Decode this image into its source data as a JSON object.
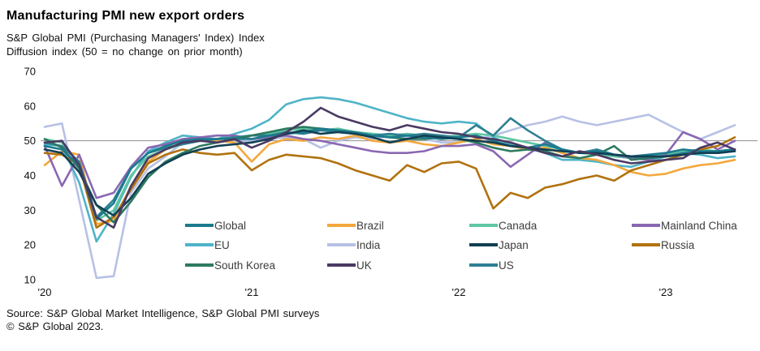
{
  "page": {
    "title": "Manufacturing PMI new export orders",
    "subtitle_line1": "S&P Global PMI (Purchasing Managers' Index) Index",
    "subtitle_line2": "Diffusion index (50 = no change on prior month)",
    "source_line1": "Source: S&P Global Market Intelligence, S&P Global PMI surveys",
    "source_line2": "© S&P Global 2023."
  },
  "chart_data": {
    "type": "line",
    "title": "Manufacturing PMI new export orders",
    "subtitle": "S&P Global PMI (Purchasing Managers' Index) Index",
    "note": "Diffusion index (50 = no change on prior month)",
    "ylim": [
      10,
      70
    ],
    "yticks": [
      70,
      60,
      50,
      40,
      30,
      20,
      10
    ],
    "xticks": [
      "'20",
      "'21",
      "'22",
      "'23"
    ],
    "reference_line": 50,
    "grid": "single horizontal reference line at 50",
    "legend_position": "inside plot, lower area, 3 rows x 4 columns",
    "reference_line_color": "#8f8f8f",
    "x_months": [
      "2020-01",
      "2020-02",
      "2020-03",
      "2020-04",
      "2020-05",
      "2020-06",
      "2020-07",
      "2020-08",
      "2020-09",
      "2020-10",
      "2020-11",
      "2020-12",
      "2021-01",
      "2021-02",
      "2021-03",
      "2021-04",
      "2021-05",
      "2021-06",
      "2021-07",
      "2021-08",
      "2021-09",
      "2021-10",
      "2021-11",
      "2021-12",
      "2022-01",
      "2022-02",
      "2022-03",
      "2022-04",
      "2022-05",
      "2022-06",
      "2022-07",
      "2022-08",
      "2022-09",
      "2022-10",
      "2022-11",
      "2022-12",
      "2023-01",
      "2023-02",
      "2023-03",
      "2023-04",
      "2023-05"
    ],
    "series": [
      {
        "name": "Global",
        "color": "#1b7b8e",
        "values": [
          48.5,
          47.5,
          43,
          27.5,
          32,
          42,
          46.5,
          48.5,
          50,
          50.5,
          50.5,
          50.5,
          50.5,
          51.5,
          52,
          52.5,
          53.5,
          53,
          52.5,
          51.5,
          51,
          51.5,
          51,
          50.5,
          51,
          51.5,
          50,
          48.5,
          48,
          49,
          47.5,
          46.5,
          47,
          46,
          45.5,
          46,
          46.5,
          47.5,
          47,
          47,
          47.5
        ]
      },
      {
        "name": "Brazil",
        "color": "#f3a83c",
        "values": [
          43,
          47,
          46,
          26,
          27,
          37,
          44,
          47.5,
          49.5,
          50.5,
          50,
          49.5,
          44,
          49,
          50.5,
          50,
          51,
          50.5,
          51.5,
          50,
          49.5,
          50,
          49,
          48.5,
          49.5,
          50.5,
          49,
          48.5,
          47.5,
          48,
          46.5,
          45,
          44.5,
          43,
          41,
          40,
          40.5,
          42,
          43,
          43.5,
          44.5
        ]
      },
      {
        "name": "Canada",
        "color": "#5fc6a3",
        "values": [
          50.5,
          49.5,
          43.5,
          27,
          30,
          40,
          45.5,
          47.5,
          49,
          50,
          50.5,
          51,
          51.5,
          52,
          53,
          53.5,
          53,
          53.5,
          52.5,
          52,
          51.5,
          52,
          51.5,
          51,
          51.5,
          52,
          51.5,
          50.5,
          49.5,
          48.5,
          47.5,
          46.5,
          46,
          45.5,
          45,
          45.5,
          46,
          47,
          47.5,
          47,
          47.5
        ]
      },
      {
        "name": "Mainland China",
        "color": "#8a67b2",
        "values": [
          48.5,
          37,
          46,
          33.5,
          35,
          42.5,
          48,
          49,
          50.5,
          51,
          51.5,
          51.5,
          50.5,
          51,
          51.5,
          50.5,
          50,
          49,
          48,
          47,
          46.5,
          46.5,
          47,
          48.5,
          48.5,
          49,
          47,
          42.5,
          46,
          49.5,
          47.5,
          46.5,
          47,
          46,
          45,
          44.5,
          46,
          52.5,
          50.5,
          47.5,
          50
        ]
      },
      {
        "name": "EU",
        "color": "#4fb4c7",
        "values": [
          49,
          48.5,
          38,
          21,
          29,
          39.5,
          47,
          49.5,
          51.5,
          51,
          50.5,
          52,
          53.5,
          56,
          60.5,
          62,
          62.5,
          62,
          61,
          59.5,
          58,
          56.5,
          55.5,
          55,
          55.5,
          55,
          51,
          49,
          48,
          46.5,
          44.5,
          44.5,
          44,
          43,
          42.5,
          44,
          45.5,
          46.5,
          46,
          45,
          45.5
        ]
      },
      {
        "name": "India",
        "color": "#b7c1e5",
        "values": [
          54,
          55,
          33,
          10.5,
          11,
          35,
          42,
          45.5,
          49.5,
          50,
          50,
          49.5,
          50,
          50.5,
          51,
          50.5,
          48,
          50,
          51,
          50.5,
          51.5,
          51,
          50.5,
          49.5,
          49.5,
          50.5,
          51.5,
          53,
          54.5,
          55.5,
          57,
          55.5,
          54.5,
          55.5,
          56.5,
          57.5,
          55,
          52.5,
          50.5,
          52.5,
          54.5
        ]
      },
      {
        "name": "Japan",
        "color": "#123f54",
        "values": [
          47.5,
          46.5,
          41,
          31.5,
          28.5,
          33.5,
          40.5,
          43.5,
          46,
          47.5,
          48.5,
          49,
          49.5,
          50.5,
          52,
          53,
          52,
          52.5,
          52,
          51,
          49.5,
          50.5,
          51.5,
          51,
          50.5,
          50,
          49.5,
          48.5,
          48,
          47.5,
          47,
          46.5,
          46.5,
          46,
          45.5,
          45.5,
          45.5,
          46,
          46.5,
          46.5,
          47
        ]
      },
      {
        "name": "Russia",
        "color": "#b1720f",
        "values": [
          46.5,
          46,
          43,
          25,
          28,
          36,
          43.5,
          46,
          47.5,
          46.5,
          46,
          46.5,
          41.5,
          44.5,
          46,
          45.5,
          45,
          43.5,
          41.5,
          40,
          38.5,
          43,
          41,
          43.5,
          44,
          42,
          30.5,
          35,
          33.5,
          36.5,
          37.5,
          39,
          40,
          38.5,
          41.5,
          43,
          44.5,
          46,
          47.5,
          48.5,
          51
        ]
      },
      {
        "name": "South Korea",
        "color": "#2c7a60",
        "values": [
          50.5,
          48,
          42,
          31.5,
          26.5,
          32.5,
          39.5,
          44,
          46.5,
          48.5,
          49.5,
          50.5,
          51.5,
          52.5,
          53.5,
          54,
          53.5,
          53,
          52.5,
          51.5,
          51,
          50.5,
          50.5,
          51,
          50.5,
          49.5,
          48,
          47,
          47.5,
          47,
          45.5,
          45,
          46,
          48.5,
          44.5,
          45,
          45.5,
          46,
          46.5,
          47,
          47.5
        ]
      },
      {
        "name": "UK",
        "color": "#493a62",
        "values": [
          49.5,
          50,
          43,
          28,
          25,
          37,
          45,
          47.5,
          49.5,
          50,
          49.5,
          50.5,
          48,
          50,
          52.5,
          55.5,
          59.5,
          57,
          55.5,
          54,
          53,
          54.5,
          53.5,
          52.5,
          52,
          51,
          50.5,
          49.5,
          48,
          46.5,
          45.5,
          47,
          46,
          44.5,
          43.5,
          44,
          44.5,
          45,
          48,
          49.5,
          47.5
        ]
      },
      {
        "name": "US",
        "color": "#2e7f93",
        "values": [
          49.5,
          48.5,
          44,
          28,
          33,
          42,
          46.5,
          48,
          49,
          50,
          50.5,
          51,
          51.5,
          51.5,
          52.5,
          52,
          53,
          52.5,
          52,
          51.5,
          52,
          51.5,
          52,
          51.5,
          51,
          54.5,
          51.5,
          56.5,
          53,
          50,
          47.5,
          46.5,
          47.5,
          46,
          45.5,
          45,
          45.5,
          46.5,
          47,
          46.5,
          47
        ]
      }
    ]
  }
}
